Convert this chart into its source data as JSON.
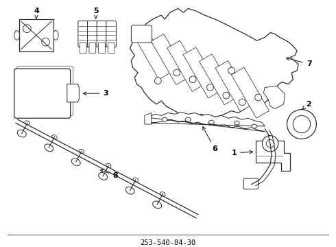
{
  "title": "253-540-84-30",
  "bg_color": "#ffffff",
  "line_color": "#2a2a2a",
  "text_color": "#000000",
  "fig_width": 4.9,
  "fig_height": 3.6,
  "dpi": 100
}
